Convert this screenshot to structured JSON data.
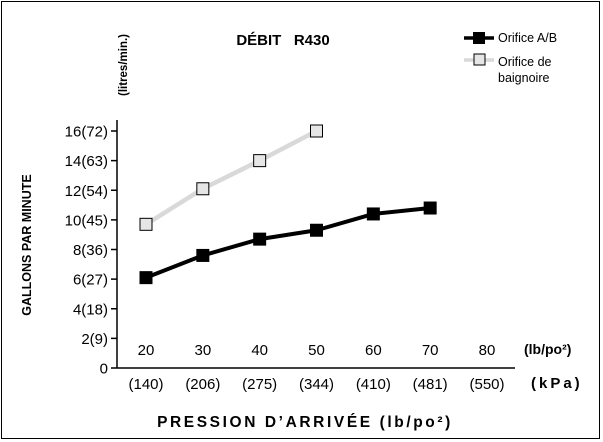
{
  "chart_data": {
    "type": "line",
    "title": "DÉBIT   R430",
    "ylabel": "GALLONS PAR MINUTE",
    "ylabel_secondary": "(litres/min.)",
    "xlabel": "PRESSION D’ARRIVÉE (lb/po²)",
    "x_unit_primary": "(lb/po²)",
    "x_unit_secondary": "(kPa)",
    "x": [
      20,
      30,
      40,
      50,
      60,
      70,
      80
    ],
    "x_tick_labels": [
      "20",
      "30",
      "40",
      "50",
      "60",
      "70",
      "80"
    ],
    "x_secondary_tick_labels": [
      "(140)",
      "(206)",
      "(275)",
      "(344)",
      "(410)",
      "(481)",
      "(550)"
    ],
    "xlim": [
      20,
      80
    ],
    "y_ticks": [
      0,
      2,
      4,
      6,
      8,
      10,
      12,
      14,
      16
    ],
    "y_tick_labels": [
      "0",
      "2(9)",
      "4(18)",
      "6(27)",
      "8(36)",
      "10(45)",
      "12(54)",
      "14(63)",
      "16(72)"
    ],
    "ylim": [
      0,
      16
    ],
    "grid": false,
    "legend_position": "top-right",
    "series": [
      {
        "name": "Orifice A/B",
        "marker": "filled-square",
        "color": "#000000",
        "x": [
          20,
          30,
          40,
          50,
          60,
          70
        ],
        "y": [
          6.1,
          7.6,
          8.7,
          9.3,
          10.4,
          10.8
        ]
      },
      {
        "name": "Orifice de baignoire",
        "name_lines": [
          "Orifice de",
          "baignoire"
        ],
        "marker": "open-square",
        "color": "#d9d9d9",
        "x": [
          20,
          30,
          40,
          50
        ],
        "y": [
          9.7,
          12.1,
          14.0,
          16.0
        ]
      }
    ]
  }
}
